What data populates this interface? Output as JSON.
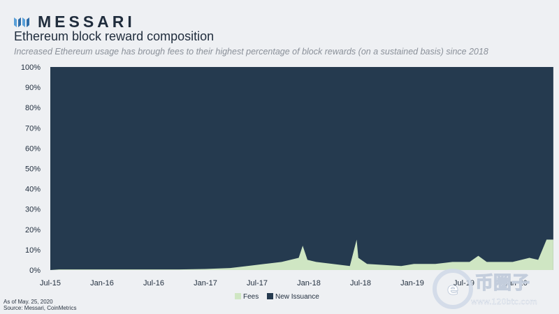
{
  "header": {
    "brand": "MESSARI",
    "title": "Ethereum block reward composition",
    "subtitle": "Increased Ethereum usage has brough fees to their highest percentage of block rewards (on a sustained basis) since 2018"
  },
  "footnotes": {
    "as_of": "As of May. 25, 2020",
    "source": "Source: Messari, CoinMetrics"
  },
  "watermark": {
    "text": "币圈子",
    "url": "www.120btc.com"
  },
  "colors": {
    "fees": "#cfe6c3",
    "new_issuance": "#253a4f",
    "brand_accent": "#5aa0d8"
  },
  "chart_data": {
    "type": "area",
    "stacked": true,
    "normalized": true,
    "x_ticks": [
      "Jul-15",
      "Jan-16",
      "Jul-16",
      "Jan-17",
      "Jul-17",
      "Jan-18",
      "Jul-18",
      "Jan-19",
      "Jul-19",
      "Jan-20"
    ],
    "y_ticks": [
      "0%",
      "10%",
      "20%",
      "30%",
      "40%",
      "50%",
      "60%",
      "70%",
      "80%",
      "90%",
      "100%"
    ],
    "ylim": [
      0,
      100
    ],
    "legend_position": "bottom-center",
    "series": [
      {
        "name": "Fees",
        "x": [
          "2015-08",
          "2015-10",
          "2016-01",
          "2016-04",
          "2016-07",
          "2016-10",
          "2017-01",
          "2017-04",
          "2017-06",
          "2017-08",
          "2017-10",
          "2017-12",
          "2017-12-15",
          "2018-01",
          "2018-02",
          "2018-04",
          "2018-06",
          "2018-06-25",
          "2018-07",
          "2018-08",
          "2018-10",
          "2018-12",
          "2019-01-15",
          "2019-02",
          "2019-04",
          "2019-06",
          "2019-08",
          "2019-09",
          "2019-10",
          "2019-12",
          "2020-01",
          "2020-02",
          "2020-03",
          "2020-04",
          "2020-05"
        ],
        "values": [
          0.3,
          0.3,
          0.3,
          0.3,
          0.3,
          0.3,
          0.5,
          1,
          2,
          3,
          4,
          6,
          12,
          5,
          4,
          3,
          2,
          15,
          6,
          3,
          2.5,
          2,
          3,
          3,
          3,
          4,
          4,
          7,
          4,
          4,
          4,
          5,
          6,
          5,
          15
        ]
      },
      {
        "name": "New Issuance",
        "x": [
          "2015-08",
          "2020-05"
        ],
        "values": [
          99.7,
          85
        ]
      }
    ]
  }
}
